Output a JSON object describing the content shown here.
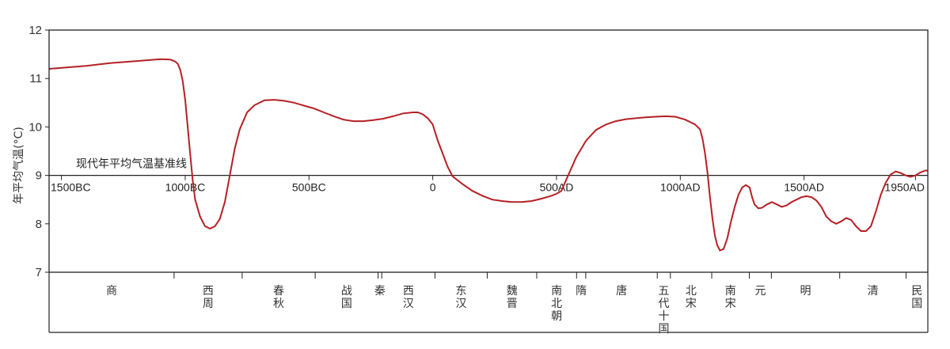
{
  "chart_data": {
    "type": "line",
    "ylabel": "年平均气温(°C)",
    "ylim": [
      7,
      12
    ],
    "yticks": [
      7,
      8,
      9,
      10,
      11,
      12
    ],
    "xlim": [
      -1550,
      2000
    ],
    "xticks": [
      {
        "value": -1500,
        "label": "1500BC"
      },
      {
        "value": -1000,
        "label": "1000BC"
      },
      {
        "value": -500,
        "label": "500BC"
      },
      {
        "value": 0,
        "label": "0"
      },
      {
        "value": 500,
        "label": "500AD"
      },
      {
        "value": 1000,
        "label": "1000AD"
      },
      {
        "value": 1500,
        "label": "1500AD"
      },
      {
        "value": 1950,
        "label": "1950AD"
      }
    ],
    "baseline": {
      "value": 9.0,
      "label": "现代年平均气温基准线"
    },
    "series": [
      {
        "color": "#b52025",
        "x": [
          -1550,
          -1400,
          -1300,
          -1200,
          -1100,
          -1060,
          -1040,
          -1030,
          -1020,
          -1010,
          -1000,
          -990,
          -980,
          -970,
          -960,
          -940,
          -920,
          -900,
          -880,
          -860,
          -840,
          -820,
          -800,
          -780,
          -750,
          -720,
          -680,
          -640,
          -600,
          -560,
          -520,
          -480,
          -440,
          -400,
          -360,
          -320,
          -280,
          -240,
          -200,
          -160,
          -120,
          -80,
          -60,
          -40,
          -20,
          0,
          20,
          40,
          60,
          80,
          120,
          160,
          200,
          240,
          280,
          320,
          360,
          400,
          440,
          480,
          500,
          520,
          540,
          580,
          620,
          660,
          700,
          740,
          780,
          820,
          860,
          900,
          940,
          980,
          1020,
          1060,
          1080,
          1090,
          1100,
          1110,
          1120,
          1130,
          1140,
          1150,
          1160,
          1175,
          1190,
          1205,
          1220,
          1235,
          1250,
          1265,
          1280,
          1290,
          1300,
          1315,
          1330,
          1350,
          1370,
          1390,
          1410,
          1430,
          1450,
          1470,
          1490,
          1510,
          1530,
          1550,
          1570,
          1590,
          1610,
          1630,
          1650,
          1670,
          1690,
          1710,
          1730,
          1750,
          1770,
          1790,
          1810,
          1830,
          1850,
          1870,
          1890,
          1910,
          1930,
          1950,
          1970,
          1990,
          2000
        ],
        "y": [
          11.2,
          11.26,
          11.32,
          11.36,
          11.4,
          11.39,
          11.35,
          11.3,
          11.18,
          10.95,
          10.55,
          10.0,
          9.45,
          8.9,
          8.5,
          8.15,
          7.95,
          7.9,
          7.95,
          8.1,
          8.45,
          9.0,
          9.55,
          9.95,
          10.3,
          10.45,
          10.55,
          10.56,
          10.54,
          10.5,
          10.44,
          10.38,
          10.3,
          10.22,
          10.15,
          10.12,
          10.12,
          10.14,
          10.17,
          10.22,
          10.28,
          10.3,
          10.3,
          10.26,
          10.18,
          10.05,
          9.72,
          9.45,
          9.18,
          8.98,
          8.82,
          8.68,
          8.58,
          8.5,
          8.47,
          8.45,
          8.45,
          8.47,
          8.52,
          8.58,
          8.62,
          8.68,
          8.92,
          9.38,
          9.72,
          9.94,
          10.05,
          10.12,
          10.16,
          10.18,
          10.2,
          10.21,
          10.22,
          10.21,
          10.15,
          10.05,
          9.95,
          9.75,
          9.45,
          9.05,
          8.55,
          8.1,
          7.75,
          7.55,
          7.45,
          7.48,
          7.7,
          8.05,
          8.35,
          8.6,
          8.75,
          8.8,
          8.75,
          8.55,
          8.4,
          8.32,
          8.33,
          8.4,
          8.45,
          8.4,
          8.35,
          8.38,
          8.45,
          8.5,
          8.55,
          8.57,
          8.55,
          8.48,
          8.35,
          8.15,
          8.05,
          8.0,
          8.05,
          8.12,
          8.08,
          7.95,
          7.85,
          7.85,
          7.95,
          8.25,
          8.6,
          8.85,
          9.02,
          9.08,
          9.05,
          9.0,
          8.97,
          9.0,
          9.06,
          9.1,
          9.1
        ]
      }
    ],
    "dynasties": [
      {
        "label": "商",
        "from": -1550,
        "to": -1045
      },
      {
        "label": "西\n周",
        "from": -1045,
        "to": -770
      },
      {
        "label": "春\n秋",
        "from": -770,
        "to": -475
      },
      {
        "label": "战\n国",
        "from": -475,
        "to": -221
      },
      {
        "label": "秦",
        "from": -221,
        "to": -206
      },
      {
        "label": "西\n汉",
        "from": -206,
        "to": 9
      },
      {
        "label": "东\n汉",
        "from": 9,
        "to": 220
      },
      {
        "label": "魏\n晋",
        "from": 220,
        "to": 420
      },
      {
        "label": "南\n北\n朝",
        "from": 420,
        "to": 581
      },
      {
        "label": "隋",
        "from": 581,
        "to": 618
      },
      {
        "label": "唐",
        "from": 618,
        "to": 907
      },
      {
        "label": "五\n代\n十\n国",
        "from": 907,
        "to": 960
      },
      {
        "label": "北\n宋",
        "from": 960,
        "to": 1127
      },
      {
        "label": "南\n宋",
        "from": 1127,
        "to": 1279
      },
      {
        "label": "元",
        "from": 1279,
        "to": 1368
      },
      {
        "label": "明",
        "from": 1368,
        "to": 1644
      },
      {
        "label": "清",
        "from": 1644,
        "to": 1912
      },
      {
        "label": "民\n国",
        "from": 1912,
        "to": 2000
      }
    ]
  }
}
